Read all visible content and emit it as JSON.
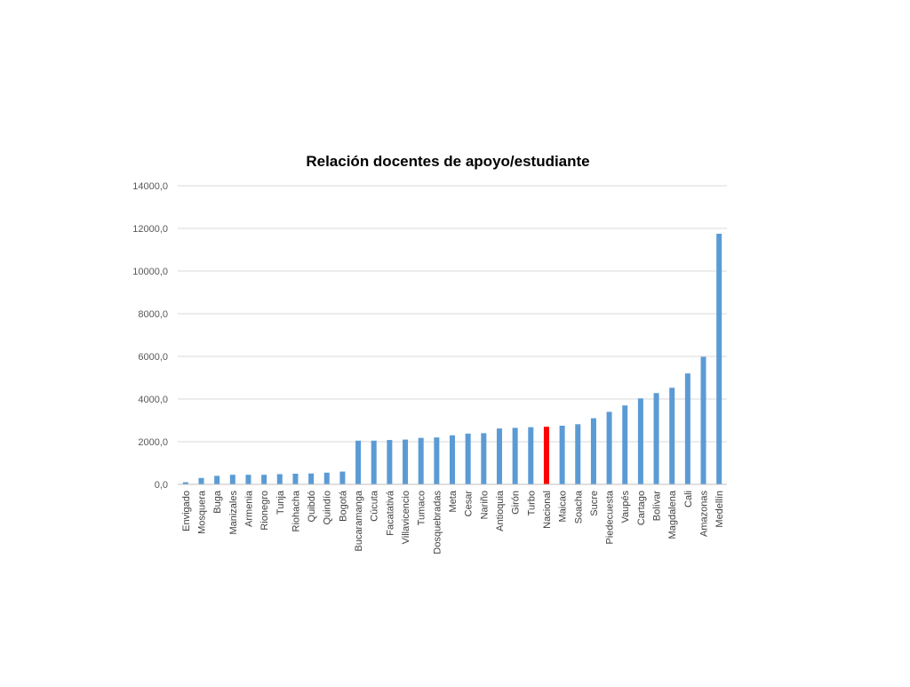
{
  "chart_data": {
    "type": "bar",
    "title": "Relación docentes de apoyo/estudiante",
    "xlabel": "",
    "ylabel": "",
    "ylim": [
      0,
      14000
    ],
    "yticks": [
      0,
      2000,
      4000,
      6000,
      8000,
      10000,
      12000,
      14000
    ],
    "ytick_labels": [
      "0,0",
      "2000,0",
      "4000,0",
      "6000,0",
      "8000,0",
      "10000,0",
      "12000,0",
      "14000,0"
    ],
    "grid": true,
    "legend": "none",
    "colors": {
      "default": "#5b9bd5",
      "highlight": "#ff0000"
    },
    "highlight_category": "Nacional",
    "categories": [
      "Envigado",
      "Mosquera",
      "Buga",
      "Manizales",
      "Armenia",
      "Rionegro",
      "Tunja",
      "Riohacha",
      "Quibdó",
      "Quindío",
      "Bogotá",
      "Bucaramanga",
      "Cúcuta",
      "Facatativá",
      "Villavicencio",
      "Tumaco",
      "Dosquebradas",
      "Meta",
      "Cesar",
      "Nariño",
      "Antioquia",
      "Girón",
      "Turbo",
      "Nacional",
      "Maicao",
      "Soacha",
      "Sucre",
      "Piedecuesta",
      "Vaupés",
      "Cartago",
      "Bolívar",
      "Magdalena",
      "Cali",
      "Amazonas",
      "Medellín"
    ],
    "values": [
      100,
      300,
      400,
      450,
      450,
      450,
      480,
      500,
      510,
      550,
      600,
      2050,
      2050,
      2080,
      2100,
      2180,
      2200,
      2300,
      2380,
      2400,
      2620,
      2650,
      2680,
      2700,
      2750,
      2820,
      3100,
      3400,
      3700,
      4030,
      4280,
      4530,
      5200,
      5980,
      11750
    ]
  }
}
